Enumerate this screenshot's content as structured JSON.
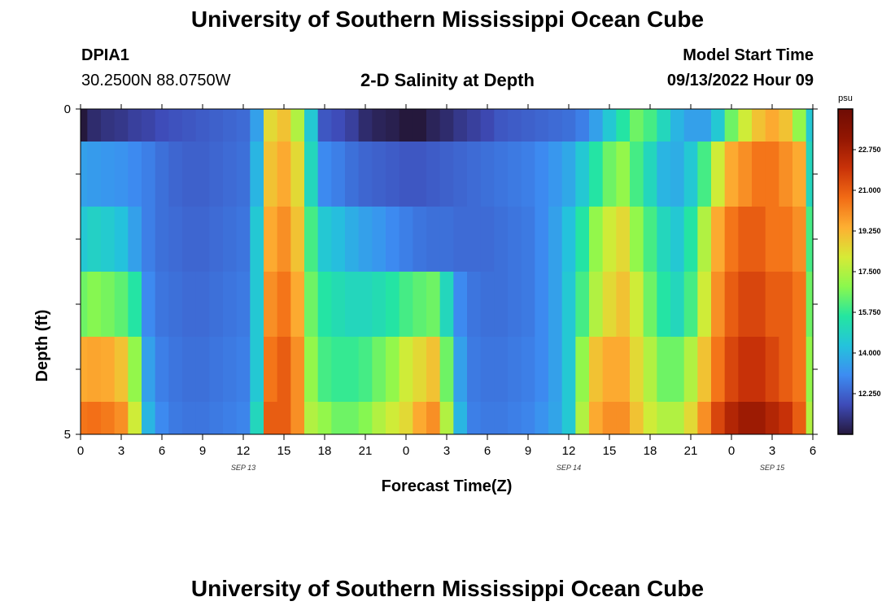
{
  "header": {
    "title": "University of Southern Mississippi Ocean Cube",
    "station_id": "DPIA1",
    "station_coords": "30.2500N  88.0750W",
    "subtitle": "2-D Salinity at Depth",
    "model_start_label": "Model Start Time",
    "model_start_value": "09/13/2022 Hour 09"
  },
  "footer": {
    "title": "University of Southern Mississippi Ocean Cube"
  },
  "chart_data": {
    "type": "heatmap",
    "title": "2-D Salinity at Depth",
    "xlabel": "Forecast Time(Z)",
    "ylabel": "Depth (ft)",
    "x_tick_labels": [
      "0",
      "3",
      "6",
      "9",
      "12",
      "15",
      "18",
      "21",
      "0",
      "3",
      "6",
      "9",
      "12",
      "15",
      "18",
      "21",
      "0",
      "3",
      "6"
    ],
    "date_labels": [
      {
        "label": "SEP 13",
        "x_hours_from_start": 12
      },
      {
        "label": "SEP 14",
        "x_hours_from_start": 36
      },
      {
        "label": "SEP 15",
        "x_hours_from_start": 51
      }
    ],
    "x_range_hours": [
      0,
      54
    ],
    "y_tick_labels": [
      "0",
      "5"
    ],
    "y_range": [
      0,
      5
    ],
    "colorbar": {
      "unit": "psu",
      "min": 10.5,
      "max": 24.5,
      "ticks": [
        "22.750",
        "21.000",
        "19.250",
        "17.500",
        "15.750",
        "14.000",
        "12.250"
      ],
      "tick_values": [
        22.75,
        21.0,
        19.25,
        17.5,
        15.75,
        14.0,
        12.25
      ]
    },
    "time_hours": [
      0,
      1,
      2,
      3,
      4,
      5,
      6,
      7,
      8,
      9,
      10,
      11,
      12,
      13,
      14,
      15,
      16,
      17,
      18,
      19,
      20,
      21,
      22,
      23,
      24,
      25,
      26,
      27,
      28,
      29,
      30,
      31,
      32,
      33,
      34,
      35,
      36,
      37,
      38,
      39,
      40,
      41,
      42,
      43,
      44,
      45,
      46,
      47,
      48,
      49,
      50,
      51,
      52,
      53,
      54
    ],
    "depth_layers": [
      {
        "depth_range": [
          0,
          0.5
        ],
        "values": [
          10.5,
          11.0,
          11.2,
          11.3,
          11.5,
          11.6,
          11.8,
          11.9,
          12.0,
          12.1,
          12.2,
          12.3,
          12.4,
          13.5,
          18.5,
          19.0,
          17.5,
          14.5,
          12.0,
          11.8,
          11.5,
          11.0,
          10.8,
          10.7,
          10.5,
          10.5,
          10.8,
          11.0,
          11.3,
          11.5,
          11.7,
          12.0,
          12.1,
          12.2,
          12.3,
          12.4,
          12.5,
          12.8,
          13.5,
          14.5,
          15.5,
          16.5,
          16.0,
          15.0,
          14.0,
          13.5,
          13.5,
          14.5,
          16.5,
          18.0,
          19.0,
          19.5,
          19.0,
          17.0,
          14.5
        ]
      },
      {
        "depth_range": [
          0.5,
          1.5
        ],
        "values": [
          13.5,
          13.4,
          13.3,
          13.2,
          13.0,
          12.8,
          12.5,
          12.3,
          12.2,
          12.2,
          12.3,
          12.4,
          12.5,
          14.0,
          19.0,
          19.5,
          18.5,
          15.0,
          13.0,
          12.8,
          12.5,
          12.3,
          12.2,
          12.1,
          12.0,
          12.0,
          12.1,
          12.2,
          12.3,
          12.4,
          12.5,
          12.6,
          12.7,
          12.8,
          13.0,
          13.3,
          13.7,
          14.5,
          15.5,
          16.5,
          17.0,
          16.0,
          15.0,
          14.0,
          13.8,
          14.5,
          16.0,
          18.0,
          19.5,
          20.0,
          20.5,
          20.5,
          20.0,
          19.5,
          15.0
        ]
      },
      {
        "depth_range": [
          1.5,
          2.5
        ],
        "values": [
          14.5,
          14.8,
          14.6,
          14.3,
          13.5,
          12.8,
          12.5,
          12.4,
          12.3,
          12.3,
          12.4,
          12.5,
          12.6,
          14.5,
          19.5,
          20.0,
          19.0,
          16.0,
          14.5,
          14.2,
          13.8,
          13.5,
          13.3,
          13.0,
          12.8,
          12.6,
          12.5,
          12.5,
          12.4,
          12.4,
          12.4,
          12.5,
          12.6,
          12.7,
          13.0,
          13.5,
          14.3,
          15.5,
          17.0,
          18.0,
          18.5,
          17.0,
          16.0,
          15.0,
          14.5,
          15.5,
          17.5,
          19.5,
          20.5,
          21.0,
          21.0,
          20.5,
          20.5,
          20.0,
          16.0
        ]
      },
      {
        "depth_range": [
          2.5,
          3.5
        ],
        "values": [
          16.5,
          16.8,
          16.6,
          16.3,
          15.5,
          13.0,
          12.6,
          12.5,
          12.4,
          12.4,
          12.5,
          12.6,
          12.7,
          14.5,
          20.0,
          20.5,
          19.5,
          16.5,
          15.5,
          15.2,
          15.0,
          15.0,
          15.2,
          15.5,
          16.0,
          16.3,
          16.5,
          15.0,
          13.0,
          12.6,
          12.5,
          12.5,
          12.6,
          12.7,
          13.0,
          13.5,
          14.5,
          16.0,
          17.5,
          18.5,
          19.0,
          18.0,
          16.5,
          15.5,
          15.0,
          16.0,
          18.0,
          20.0,
          21.0,
          21.5,
          21.5,
          21.0,
          21.0,
          20.5,
          16.5
        ]
      },
      {
        "depth_range": [
          3.5,
          4.5
        ],
        "values": [
          19.5,
          19.6,
          19.5,
          19.0,
          17.0,
          13.5,
          12.8,
          12.6,
          12.5,
          12.5,
          12.6,
          12.7,
          12.8,
          14.5,
          20.5,
          21.0,
          20.0,
          17.0,
          16.0,
          15.8,
          15.8,
          16.0,
          16.5,
          17.0,
          18.0,
          18.5,
          19.0,
          16.5,
          13.5,
          12.7,
          12.6,
          12.6,
          12.7,
          12.8,
          13.0,
          13.5,
          14.5,
          17.0,
          19.0,
          19.5,
          19.5,
          18.5,
          17.5,
          16.5,
          16.5,
          17.5,
          19.0,
          20.5,
          21.5,
          22.0,
          22.0,
          21.5,
          21.0,
          20.5,
          17.0
        ]
      },
      {
        "depth_range": [
          4.5,
          5
        ],
        "values": [
          20.5,
          20.6,
          20.4,
          20.0,
          18.0,
          14.0,
          13.0,
          12.7,
          12.6,
          12.6,
          12.7,
          12.8,
          12.9,
          15.0,
          21.0,
          21.0,
          20.0,
          17.5,
          17.0,
          16.5,
          16.5,
          16.8,
          17.5,
          18.0,
          18.5,
          19.5,
          20.0,
          17.5,
          14.0,
          12.8,
          12.7,
          12.7,
          12.8,
          12.9,
          13.2,
          13.6,
          14.5,
          17.5,
          19.5,
          20.0,
          20.0,
          19.0,
          18.0,
          17.5,
          17.5,
          18.5,
          20.0,
          21.5,
          22.5,
          23.0,
          23.0,
          22.5,
          22.0,
          21.0,
          17.5
        ]
      }
    ],
    "color_scale": [
      "#25183c",
      "#3e4bb8",
      "#3d8cf2",
      "#24c3dc",
      "#24e6a0",
      "#8bf84d",
      "#d7ea36",
      "#fdaf32",
      "#f26b15",
      "#c93208",
      "#931602",
      "#6e0c04"
    ]
  }
}
